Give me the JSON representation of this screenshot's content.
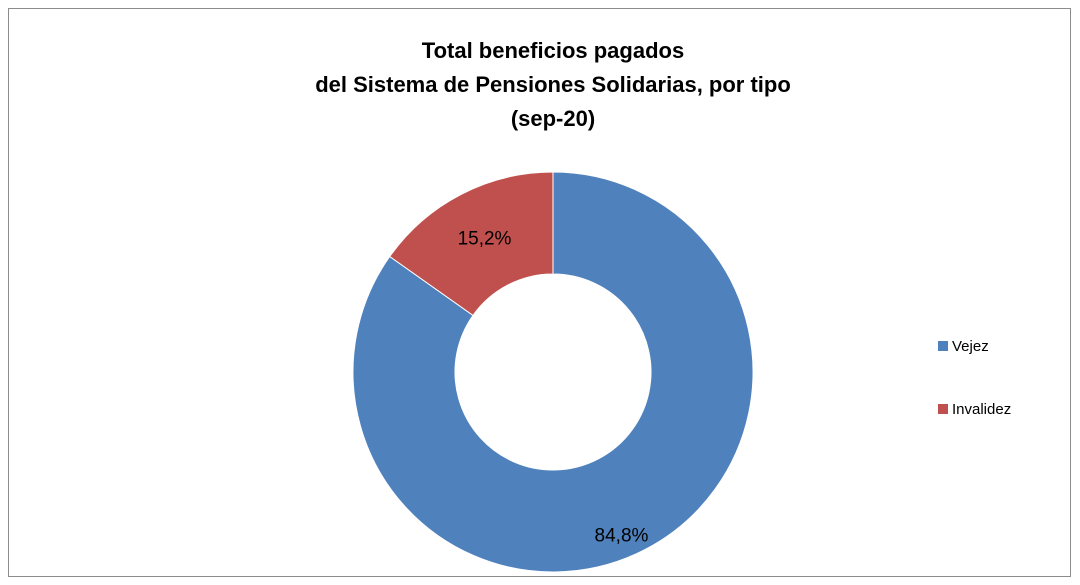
{
  "chart_data": {
    "type": "donut",
    "title": [
      "Total beneficios pagados",
      "del Sistema de Pensiones Solidarias, por tipo",
      "(sep-20)"
    ],
    "categories": [
      "Vejez",
      "Invalidez"
    ],
    "values": [
      84.8,
      15.2
    ],
    "value_labels": [
      "84,8%",
      "15,2%"
    ],
    "colors": [
      "#4f81bd",
      "#c0504d"
    ],
    "legend": "right"
  }
}
